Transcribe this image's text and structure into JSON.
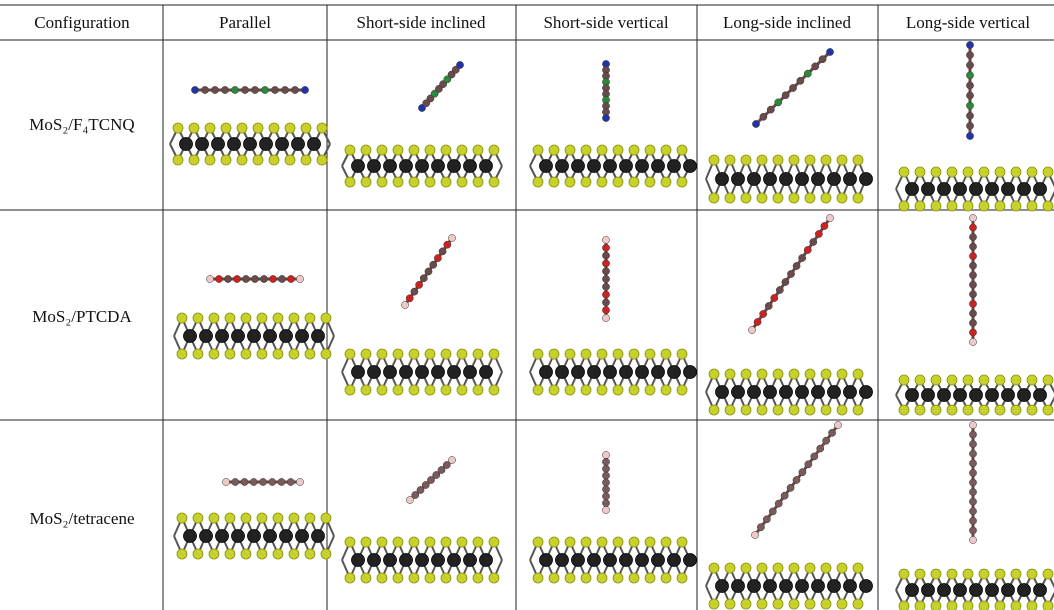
{
  "table": {
    "header": [
      "Configuration",
      "Parallel",
      "Short-side inclined",
      "Short-side vertical",
      "Long-side inclined",
      "Long-side vertical"
    ],
    "rows": [
      "MoS₂/F₄TCNQ",
      "MoS₂/PTCDA",
      "MoS₂/tetracene"
    ]
  }
}
